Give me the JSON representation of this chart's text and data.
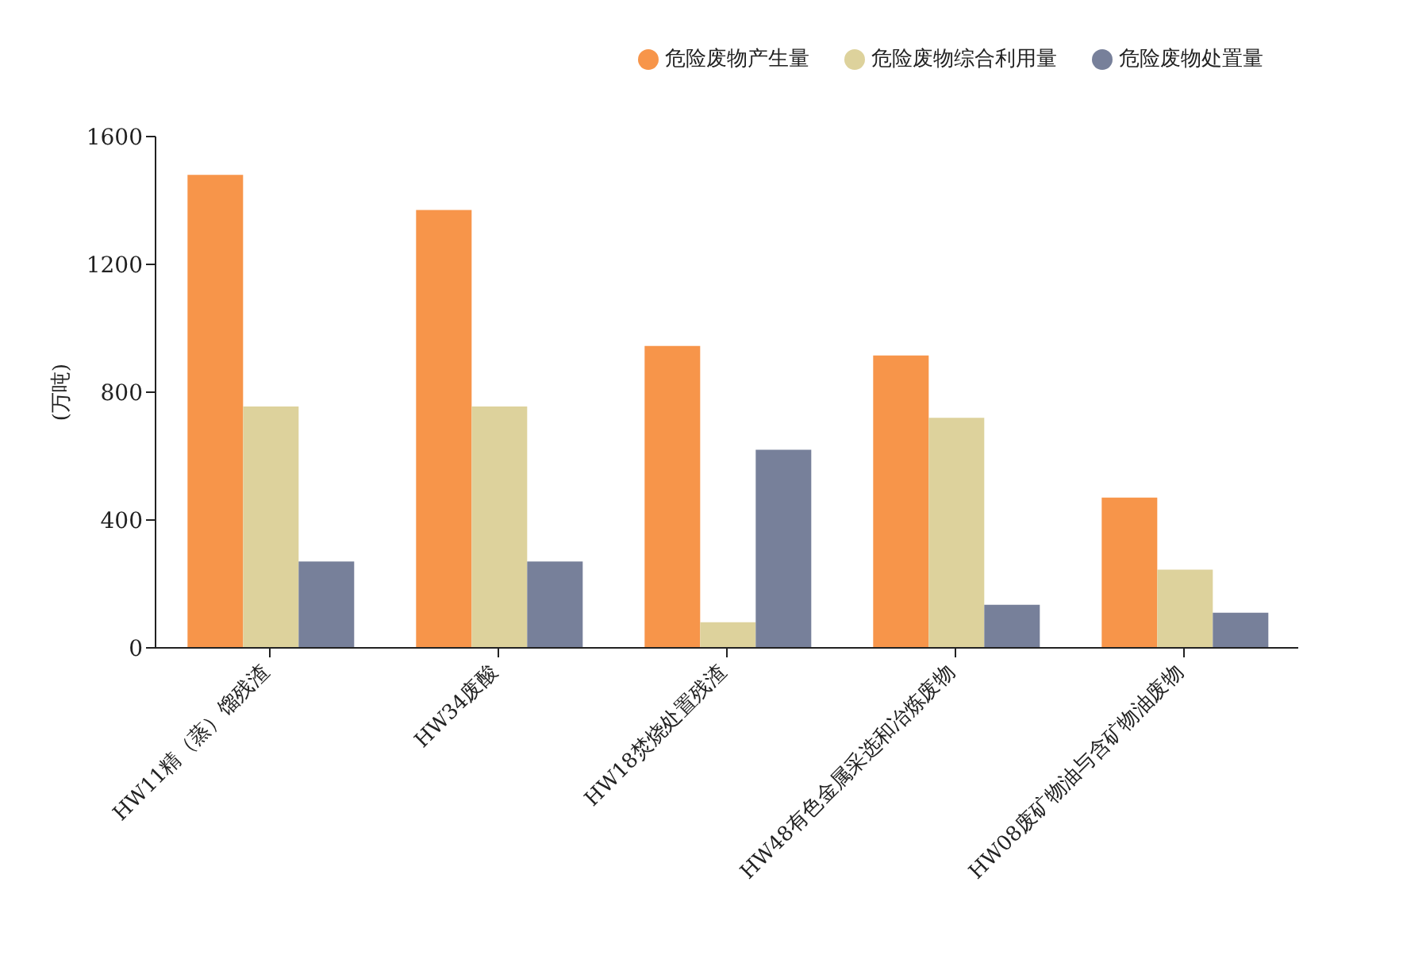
{
  "chart_data": {
    "type": "bar",
    "ylabel": "(万吨)",
    "categories": [
      "HW11精（蒸）馏残渣",
      "HW34废酸",
      "HW18焚烧处置残渣",
      "HW48有色金属采选和冶炼废物",
      "HW08废矿物油与含矿物油废物"
    ],
    "series": [
      {
        "name": "危险废物产生量",
        "color": "#f7954a",
        "values": [
          1480,
          1370,
          945,
          915,
          470
        ]
      },
      {
        "name": "危险废物综合利用量",
        "color": "#ddd29c",
        "values": [
          755,
          755,
          80,
          720,
          245
        ]
      },
      {
        "name": "危险废物处置量",
        "color": "#77809a",
        "values": [
          270,
          270,
          620,
          135,
          110
        ]
      }
    ],
    "ylim": [
      0,
      1600
    ],
    "yticks": [
      0,
      400,
      800,
      1200,
      1600
    ],
    "grid": false,
    "legend": "top right"
  }
}
